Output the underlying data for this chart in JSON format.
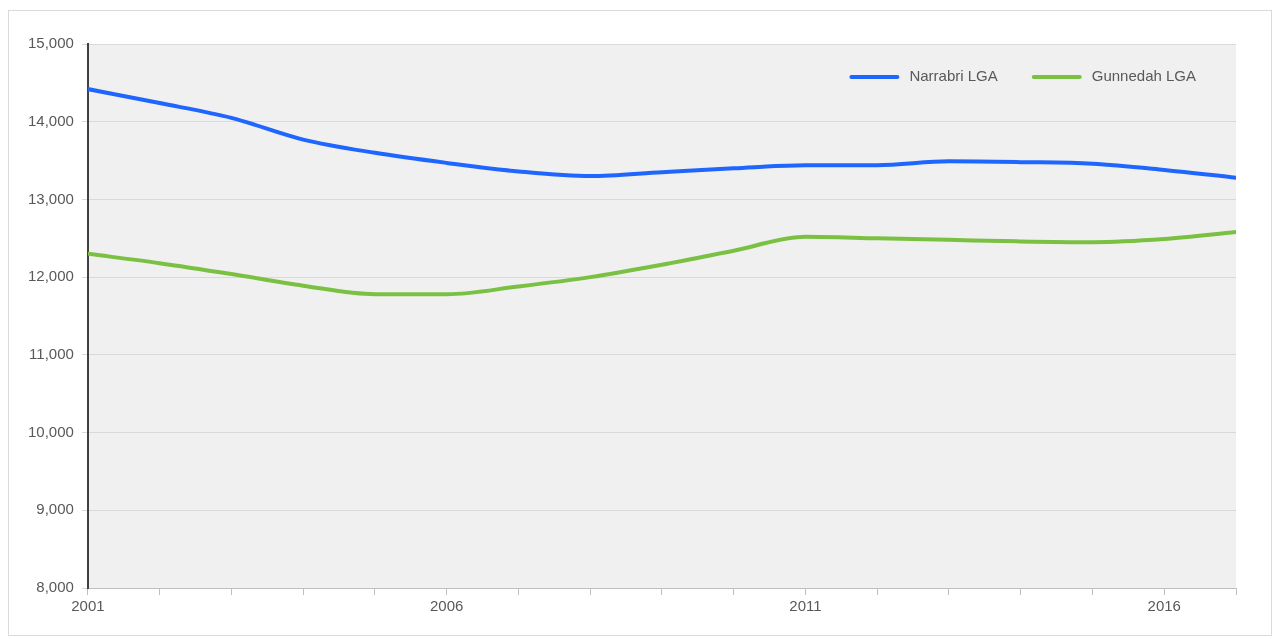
{
  "chart_data": {
    "type": "line",
    "x": [
      2001,
      2002,
      2003,
      2004,
      2005,
      2006,
      2007,
      2008,
      2009,
      2010,
      2011,
      2012,
      2013,
      2014,
      2015,
      2016,
      2017
    ],
    "series": [
      {
        "name": "Narrabri LGA",
        "color": "#1f66ff",
        "values": [
          14420,
          14240,
          14050,
          13770,
          13600,
          13470,
          13360,
          13300,
          13350,
          13400,
          13440,
          13440,
          13490,
          13480,
          13460,
          13380,
          13280
        ]
      },
      {
        "name": "Gunnedah LGA",
        "color": "#7ac143",
        "values": [
          12300,
          12180,
          12040,
          11890,
          11780,
          11780,
          11880,
          12000,
          12160,
          12340,
          12520,
          12500,
          12480,
          12460,
          12450,
          12490,
          12580
        ]
      }
    ],
    "xlim": [
      2001,
      2017
    ],
    "xticks": [
      2001,
      {
        "value": 2002,
        "label": null
      },
      {
        "value": 2003,
        "label": null
      },
      {
        "value": 2004,
        "label": null
      },
      {
        "value": 2005,
        "label": null
      },
      2006,
      {
        "value": 2007,
        "label": null
      },
      {
        "value": 2008,
        "label": null
      },
      {
        "value": 2009,
        "label": null
      },
      {
        "value": 2010,
        "label": null
      },
      2011,
      {
        "value": 2012,
        "label": null
      },
      {
        "value": 2013,
        "label": null
      },
      {
        "value": 2014,
        "label": null
      },
      {
        "value": 2015,
        "label": null
      },
      2016,
      {
        "value": 2017,
        "label": null
      }
    ],
    "ylim": [
      8000,
      15000
    ],
    "yticks": [
      {
        "value": 8000,
        "label": "8,000"
      },
      {
        "value": 9000,
        "label": "9,000"
      },
      {
        "value": 10000,
        "label": "10,000"
      },
      {
        "value": 11000,
        "label": "11,000"
      },
      {
        "value": 12000,
        "label": "12,000"
      },
      {
        "value": 13000,
        "label": "13,000"
      },
      {
        "value": 14000,
        "label": "14,000"
      },
      {
        "value": 15000,
        "label": "15,000"
      }
    ],
    "grid": "y",
    "legend": "top right",
    "marker": "none",
    "line_style": "solid"
  }
}
